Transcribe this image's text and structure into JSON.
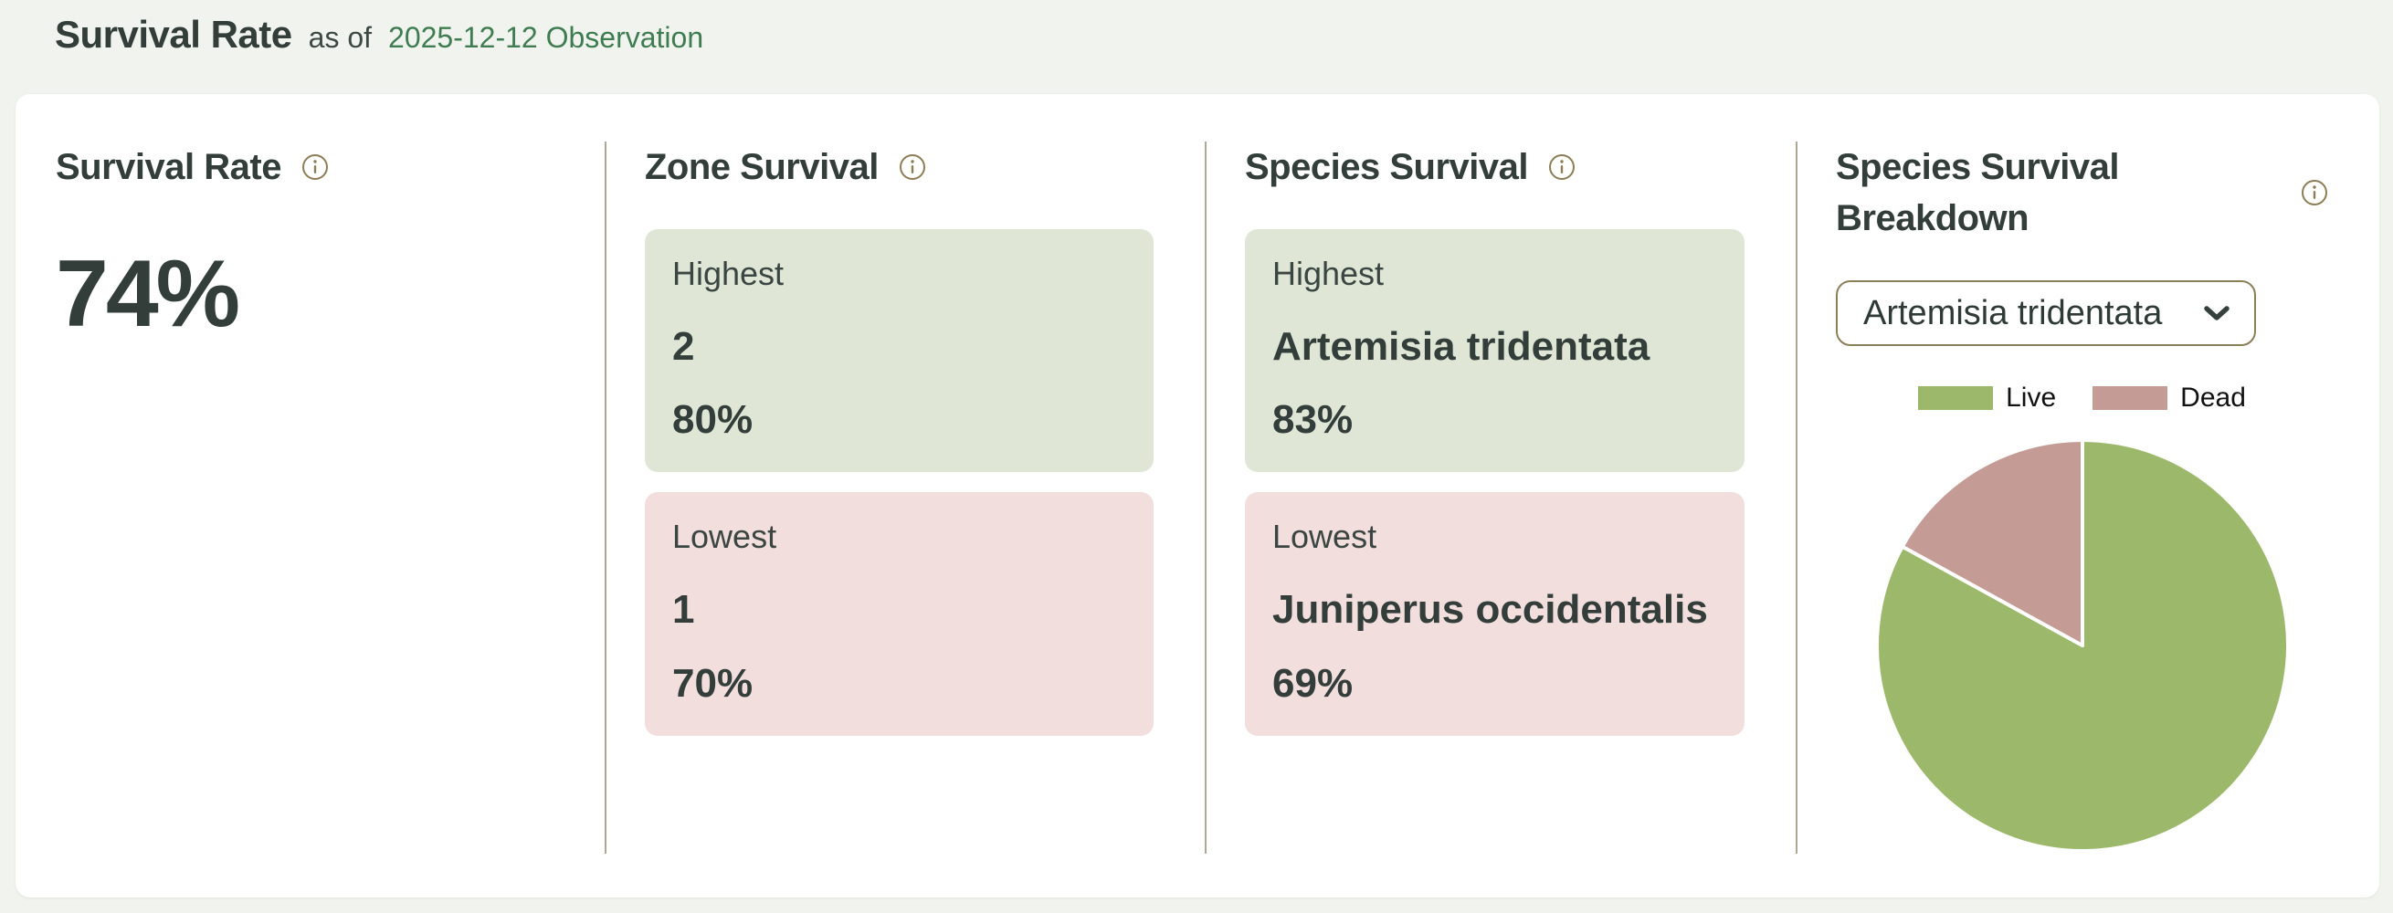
{
  "header": {
    "title": "Survival Rate",
    "as_of_label": "as of",
    "date_link": "2025-12-12 Observation"
  },
  "sections": {
    "survival_rate": {
      "title": "Survival Rate",
      "value": "74%"
    },
    "zone_survival": {
      "title": "Zone Survival",
      "highest": {
        "label": "Highest",
        "name": "2",
        "value": "80%"
      },
      "lowest": {
        "label": "Lowest",
        "name": "1",
        "value": "70%"
      }
    },
    "species_survival": {
      "title": "Species Survival",
      "highest": {
        "label": "Highest",
        "name": "Artemisia tridentata",
        "value": "83%"
      },
      "lowest": {
        "label": "Lowest",
        "name": "Juniperus occidentalis",
        "value": "69%"
      }
    },
    "breakdown": {
      "title": "Species Survival Breakdown",
      "selected_species": "Artemisia tridentata"
    }
  },
  "chart_data": {
    "type": "pie",
    "title": "Species Survival Breakdown",
    "labels": [
      "Live",
      "Dead"
    ],
    "values": [
      83,
      17
    ],
    "colors": [
      "#9cb86a",
      "#c59c95"
    ],
    "legend_position": "top",
    "start_angle_deg": -90,
    "direction": "clockwise",
    "slice_gap_color": "#ffffff"
  },
  "colors": {
    "page_bg": "#f1f4ee",
    "card_bg": "#ffffff",
    "highlight_green_bg": "#dfe6d6",
    "highlight_red_bg": "#f2dedd",
    "accent_olive": "#8b7e57",
    "link_green": "#3f7c52",
    "text_dark": "#333e3b",
    "divider": "#aea795"
  }
}
